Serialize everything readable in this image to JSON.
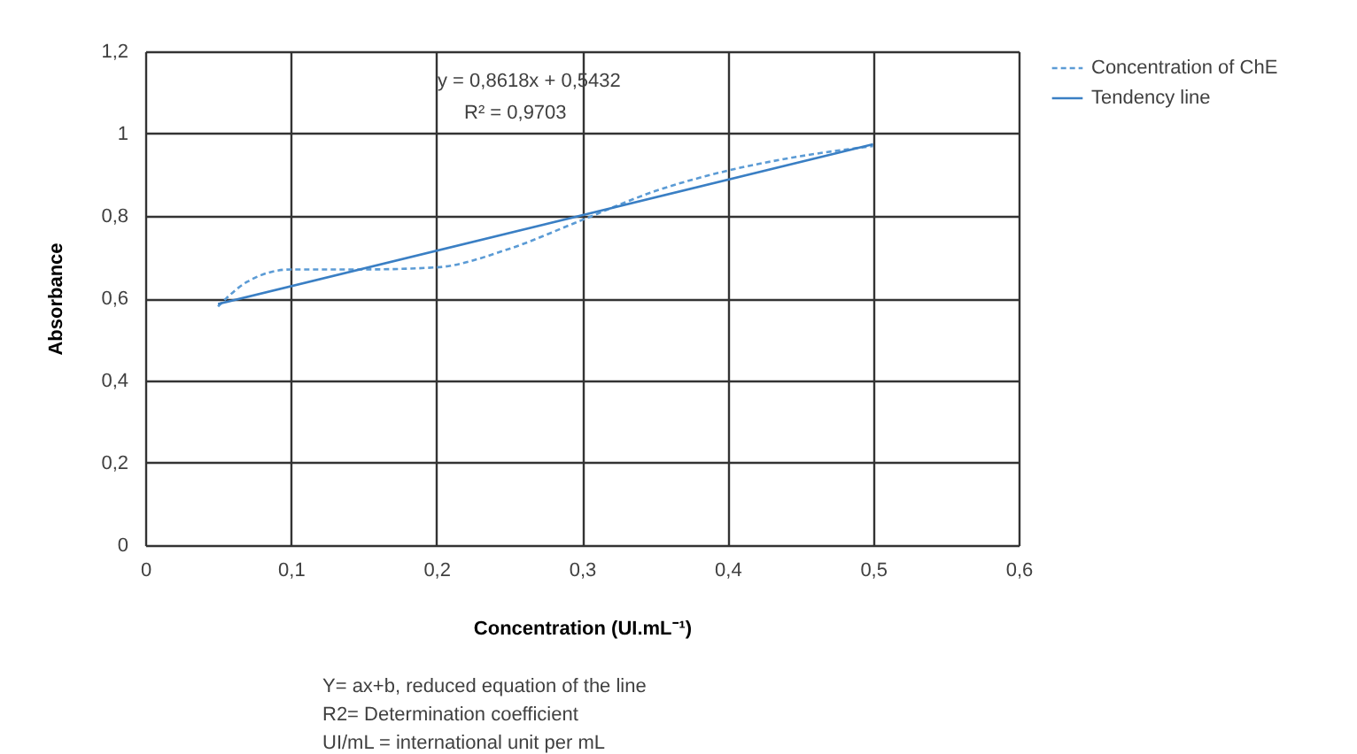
{
  "chart_data": {
    "type": "line",
    "xlabel": "Concentration (UI.mL⁻¹)",
    "ylabel": "Absorbance",
    "xlim": [
      0,
      0.6
    ],
    "ylim": [
      0,
      1.2
    ],
    "xticks": [
      0,
      {
        "value": 0.1,
        "label": "0,1"
      },
      {
        "value": 0.2,
        "label": "0,2"
      },
      {
        "value": 0.3,
        "label": "0,3"
      },
      {
        "value": 0.4,
        "label": "0,4"
      },
      {
        "value": 0.5,
        "label": "0,5"
      },
      {
        "value": 0.6,
        "label": "0,6"
      }
    ],
    "yticks": [
      0,
      {
        "value": 0.2,
        "label": "0,2"
      },
      {
        "value": 0.4,
        "label": "0,4"
      },
      {
        "value": 0.6,
        "label": "0,6"
      },
      {
        "value": 0.8,
        "label": "0,8"
      },
      1,
      {
        "value": 1.2,
        "label": "1,2"
      }
    ],
    "grid": true,
    "legend": "right",
    "series": [
      {
        "name": "Concentration of ChE",
        "color": "#5b9bd5",
        "line_style": "dashed",
        "x": [
          0.05,
          0.07,
          0.1,
          0.15,
          0.2,
          0.25,
          0.3,
          0.35,
          0.4,
          0.45,
          0.5
        ],
        "values": [
          0.58,
          0.64,
          0.67,
          0.67,
          0.675,
          0.72,
          0.79,
          0.86,
          0.91,
          0.945,
          0.97
        ]
      },
      {
        "name": "Tendency line",
        "color": "#3a7fc4",
        "line_style": "solid",
        "x": [
          0.05,
          0.5
        ],
        "values": [
          0.586,
          0.974
        ]
      }
    ],
    "annotations": [
      "y = 0,8618x + 0,5432",
      "R² = 0,9703",
      "Y= ax+b, reduced equation of the line",
      "R2= Determination coefficient",
      "UI/mL = international unit per mL"
    ]
  }
}
